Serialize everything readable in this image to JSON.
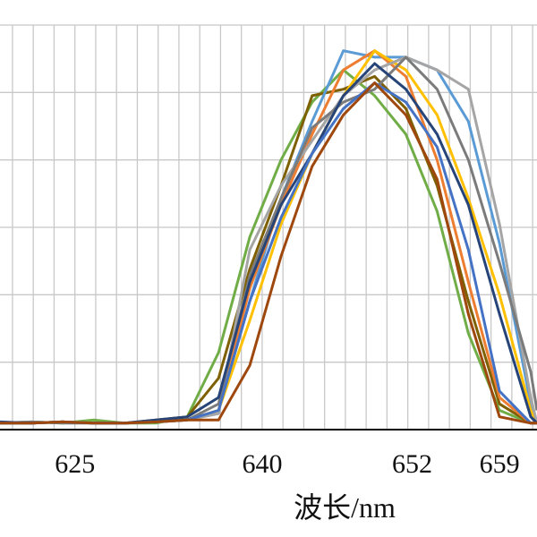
{
  "chart_data": {
    "type": "line",
    "xlabel": "波长/nm",
    "ylabel": "",
    "title": "",
    "xlim": [
      619,
      662
    ],
    "ylim": [
      0,
      6.3
    ],
    "x_ticks": [
      625,
      640,
      652,
      659
    ],
    "grid": true,
    "legend": "none",
    "x": [
      619,
      621.5,
      624,
      626.5,
      629,
      631.5,
      634,
      636.5,
      639,
      641.5,
      644,
      646.5,
      649,
      651.5,
      654,
      656.5,
      659,
      661.5,
      662
    ],
    "series": [
      {
        "color": "#70ad47",
        "values": [
          0.1,
          0.12,
          0.1,
          0.15,
          0.1,
          0.1,
          0.2,
          1.2,
          3.0,
          4.2,
          5.1,
          5.6,
          5.2,
          4.6,
          3.4,
          1.5,
          0.3,
          0.1,
          0.1
        ]
      },
      {
        "color": "#7f6000",
        "values": [
          0.1,
          0.1,
          0.12,
          0.1,
          0.1,
          0.15,
          0.2,
          0.8,
          2.5,
          3.8,
          5.2,
          5.3,
          5.5,
          5.0,
          3.8,
          2.0,
          0.4,
          0.1,
          0.1
        ]
      },
      {
        "color": "#5b9bd5",
        "values": [
          0.1,
          0.1,
          0.12,
          0.1,
          0.1,
          0.12,
          0.15,
          0.3,
          2.0,
          3.6,
          4.8,
          5.9,
          5.8,
          5.8,
          5.6,
          4.8,
          2.9,
          0.4,
          0.1
        ]
      },
      {
        "color": "#ed7d31",
        "values": [
          0.1,
          0.1,
          0.12,
          0.1,
          0.1,
          0.12,
          0.15,
          0.3,
          2.2,
          3.5,
          4.6,
          5.6,
          5.9,
          5.5,
          4.2,
          2.3,
          0.5,
          0.1,
          0.1
        ]
      },
      {
        "color": "#ffc000",
        "values": [
          0.1,
          0.1,
          0.12,
          0.1,
          0.1,
          0.12,
          0.15,
          0.3,
          1.7,
          3.2,
          4.3,
          5.2,
          5.9,
          5.6,
          4.9,
          3.6,
          2.1,
          0.3,
          0.1
        ]
      },
      {
        "color": "#a5a5a5",
        "values": [
          0.1,
          0.1,
          0.12,
          0.1,
          0.1,
          0.12,
          0.15,
          0.25,
          2.8,
          3.8,
          4.5,
          5.2,
          5.6,
          5.8,
          5.6,
          5.3,
          3.2,
          0.5,
          0.1
        ]
      },
      {
        "color": "#7b7b7b",
        "values": [
          0.1,
          0.12,
          0.1,
          0.1,
          0.1,
          0.12,
          0.15,
          0.4,
          2.4,
          3.6,
          4.7,
          5.1,
          5.3,
          5.8,
          5.3,
          4.2,
          2.6,
          0.9,
          0.3
        ]
      },
      {
        "color": "#264478",
        "values": [
          0.12,
          0.1,
          0.12,
          0.1,
          0.1,
          0.15,
          0.2,
          0.5,
          2.3,
          3.5,
          4.3,
          5.2,
          5.7,
          5.3,
          4.6,
          3.5,
          1.8,
          0.2,
          0.1
        ]
      },
      {
        "color": "#4472c4",
        "values": [
          0.1,
          0.1,
          0.12,
          0.1,
          0.1,
          0.12,
          0.15,
          0.3,
          2.0,
          3.3,
          4.3,
          5.0,
          5.4,
          5.1,
          4.4,
          2.8,
          0.6,
          0.1,
          0.1
        ]
      },
      {
        "color": "#9e480e",
        "values": [
          0.1,
          0.1,
          0.12,
          0.1,
          0.1,
          0.12,
          0.15,
          0.15,
          1.0,
          2.7,
          4.1,
          4.9,
          5.4,
          4.9,
          3.9,
          1.8,
          0.2,
          0.1,
          0.1
        ]
      }
    ]
  }
}
